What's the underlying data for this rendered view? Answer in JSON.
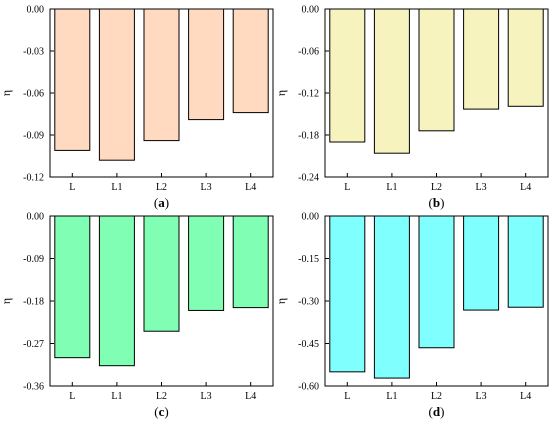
{
  "chart_data": [
    {
      "type": "bar",
      "panel_label": [
        "(",
        "a",
        ")"
      ],
      "categories": [
        "L",
        "L1",
        "L2",
        "L3",
        "L4"
      ],
      "values": [
        -0.101,
        -0.108,
        -0.094,
        -0.079,
        -0.074
      ],
      "ylabel": "η",
      "ylim": [
        -0.12,
        0
      ],
      "yticks": [
        "0.00",
        "-0.03",
        "-0.06",
        "-0.09",
        "-0.12"
      ],
      "bar_color": "#FFD9C0",
      "grid": false
    },
    {
      "type": "bar",
      "panel_label": [
        "(",
        "b",
        ")"
      ],
      "categories": [
        "L",
        "L1",
        "L2",
        "L3",
        "L4"
      ],
      "values": [
        -0.19,
        -0.206,
        -0.174,
        -0.143,
        -0.139
      ],
      "ylabel": "η",
      "ylim": [
        -0.24,
        0
      ],
      "yticks": [
        "0.00",
        "-0.06",
        "-0.12",
        "-0.18",
        "-0.24"
      ],
      "bar_color": "#F7F3BE",
      "grid": false
    },
    {
      "type": "bar",
      "panel_label": [
        "(",
        "c",
        ")"
      ],
      "categories": [
        "L",
        "L1",
        "L2",
        "L3",
        "L4"
      ],
      "values": [
        -0.3,
        -0.317,
        -0.244,
        -0.2,
        -0.194
      ],
      "ylabel": "η",
      "ylim": [
        -0.36,
        0
      ],
      "yticks": [
        "0.00",
        "-0.09",
        "-0.18",
        "-0.27",
        "-0.36"
      ],
      "bar_color": "#80FFB4",
      "grid": false
    },
    {
      "type": "bar",
      "panel_label": [
        "(",
        "d",
        ")"
      ],
      "categories": [
        "L",
        "L1",
        "L2",
        "L3",
        "L4"
      ],
      "values": [
        -0.55,
        -0.572,
        -0.465,
        -0.332,
        -0.322
      ],
      "ylabel": "η",
      "ylim": [
        -0.6,
        0
      ],
      "yticks": [
        "0.00",
        "-0.15",
        "-0.30",
        "-0.45",
        "-0.60"
      ],
      "bar_color": "#80FFFF",
      "grid": false
    }
  ]
}
